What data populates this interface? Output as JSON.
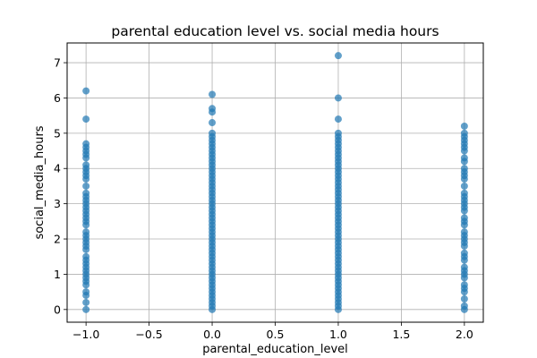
{
  "chart_data": {
    "type": "scatter",
    "title": "parental education level vs. social media hours",
    "xlabel": "parental_education_level",
    "ylabel": "social_media_hours",
    "xlim": [
      -1.15,
      2.15
    ],
    "ylim": [
      -0.36,
      7.56
    ],
    "grid": true,
    "marker_color": "#1f77b4",
    "marker_alpha": 0.7,
    "x_ticks": [
      {
        "value": -1.0,
        "label": "−1.0"
      },
      {
        "value": -0.5,
        "label": "−0.5"
      },
      {
        "value": 0.0,
        "label": "0.0"
      },
      {
        "value": 0.5,
        "label": "0.5"
      },
      {
        "value": 1.0,
        "label": "1.0"
      },
      {
        "value": 1.5,
        "label": "1.5"
      },
      {
        "value": 2.0,
        "label": "2.0"
      }
    ],
    "y_ticks": [
      {
        "value": 0,
        "label": "0"
      },
      {
        "value": 1,
        "label": "1"
      },
      {
        "value": 2,
        "label": "2"
      },
      {
        "value": 3,
        "label": "3"
      },
      {
        "value": 4,
        "label": "4"
      },
      {
        "value": 5,
        "label": "5"
      },
      {
        "value": 6,
        "label": "6"
      },
      {
        "value": 7,
        "label": "7"
      }
    ],
    "series": [
      {
        "x": -1,
        "y": [
          0.0,
          0.2,
          0.4,
          0.5,
          0.7,
          0.8,
          0.9,
          1.0,
          1.1,
          1.2,
          1.3,
          1.4,
          1.5,
          1.7,
          1.8,
          1.9,
          2.0,
          2.1,
          2.2,
          2.4,
          2.5,
          2.6,
          2.7,
          2.8,
          2.9,
          3.0,
          3.1,
          3.2,
          3.3,
          3.5,
          3.7,
          3.8,
          3.9,
          4.0,
          4.1,
          4.3,
          4.4,
          4.5,
          4.6,
          4.7,
          5.4,
          6.2
        ]
      },
      {
        "x": 0,
        "y": [
          0.0,
          0.1,
          0.2,
          0.3,
          0.4,
          0.5,
          0.6,
          0.7,
          0.8,
          0.9,
          1.0,
          1.1,
          1.2,
          1.3,
          1.4,
          1.5,
          1.6,
          1.7,
          1.8,
          1.9,
          2.0,
          2.1,
          2.2,
          2.3,
          2.4,
          2.5,
          2.6,
          2.7,
          2.8,
          2.9,
          3.0,
          3.1,
          3.2,
          3.3,
          3.4,
          3.5,
          3.6,
          3.7,
          3.8,
          3.9,
          4.0,
          4.1,
          4.2,
          4.3,
          4.4,
          4.5,
          4.6,
          4.7,
          4.8,
          4.9,
          5.0,
          5.3,
          5.6,
          5.7,
          6.1
        ]
      },
      {
        "x": 1,
        "y": [
          0.0,
          0.1,
          0.2,
          0.3,
          0.4,
          0.5,
          0.6,
          0.7,
          0.8,
          0.9,
          1.0,
          1.1,
          1.2,
          1.3,
          1.4,
          1.5,
          1.6,
          1.7,
          1.8,
          1.9,
          2.0,
          2.1,
          2.2,
          2.3,
          2.4,
          2.5,
          2.6,
          2.7,
          2.8,
          2.9,
          3.0,
          3.1,
          3.2,
          3.3,
          3.4,
          3.5,
          3.6,
          3.7,
          3.8,
          3.9,
          4.0,
          4.1,
          4.2,
          4.3,
          4.4,
          4.5,
          4.6,
          4.7,
          4.8,
          4.9,
          5.0,
          5.4,
          6.0,
          7.2
        ]
      },
      {
        "x": 2,
        "y": [
          0.0,
          0.1,
          0.3,
          0.5,
          0.6,
          0.7,
          0.9,
          1.0,
          1.1,
          1.2,
          1.4,
          1.5,
          1.6,
          1.8,
          1.9,
          2.0,
          2.1,
          2.2,
          2.4,
          2.5,
          2.6,
          2.8,
          2.9,
          3.0,
          3.1,
          3.2,
          3.3,
          3.5,
          3.7,
          3.8,
          3.9,
          4.0,
          4.2,
          4.3,
          4.5,
          4.6,
          4.7,
          4.8,
          4.9,
          5.0,
          5.2
        ]
      }
    ]
  }
}
